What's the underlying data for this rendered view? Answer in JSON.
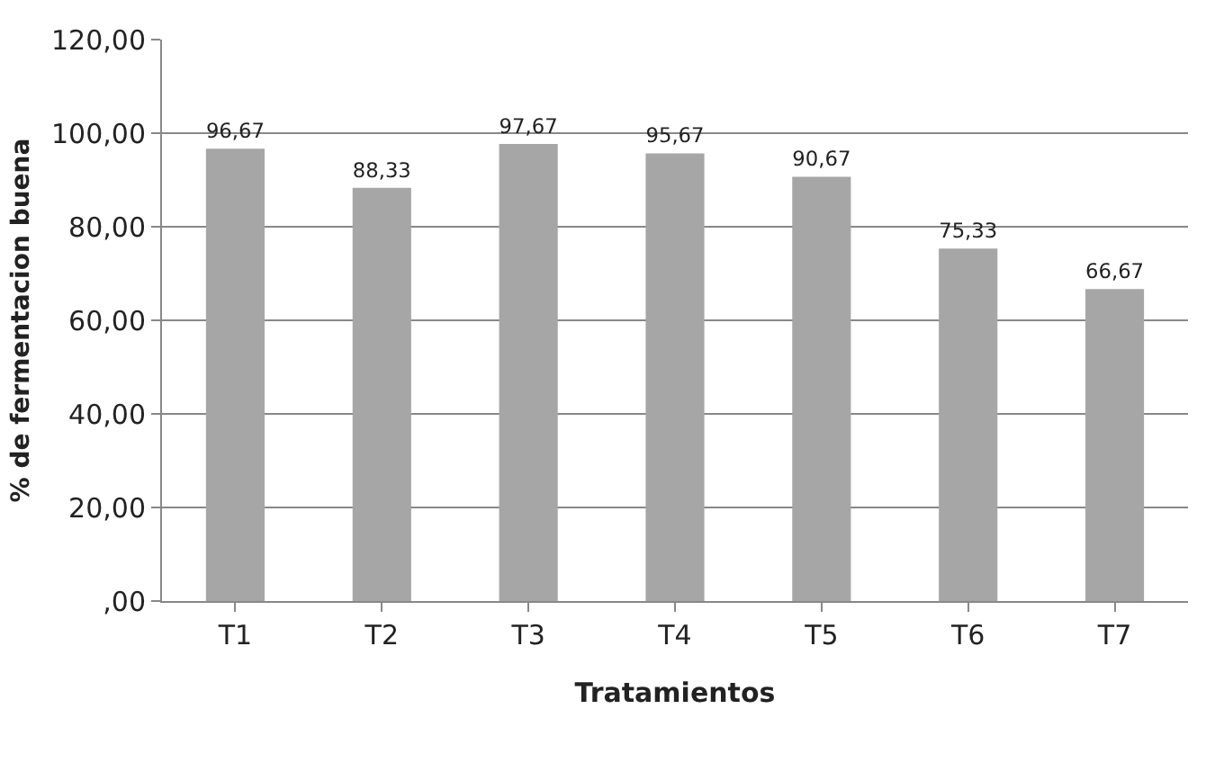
{
  "chart_data": {
    "type": "bar",
    "xlabel": "Tratamientos",
    "ylabel": "% de fermentacion buena",
    "categories": [
      "T1",
      "T2",
      "T3",
      "T4",
      "T5",
      "T6",
      "T7"
    ],
    "values": [
      96.67,
      88.33,
      97.67,
      95.67,
      90.67,
      75.33,
      66.67
    ],
    "value_labels": [
      "96,67",
      "88,33",
      "97,67",
      "95,67",
      "90,67",
      "75,33",
      "66,67"
    ],
    "color": "#a6a6a6",
    "ylim": [
      0,
      120
    ],
    "yticks": [
      {
        "value": 0,
        "label": ",00"
      },
      {
        "value": 20,
        "label": "20,00"
      },
      {
        "value": 40,
        "label": "40,00"
      },
      {
        "value": 60,
        "label": "60,00"
      },
      {
        "value": 80,
        "label": "80,00"
      },
      {
        "value": 100,
        "label": "100,00"
      },
      {
        "value": 120,
        "label": "120,00"
      }
    ],
    "grid": "y",
    "legend": false
  }
}
